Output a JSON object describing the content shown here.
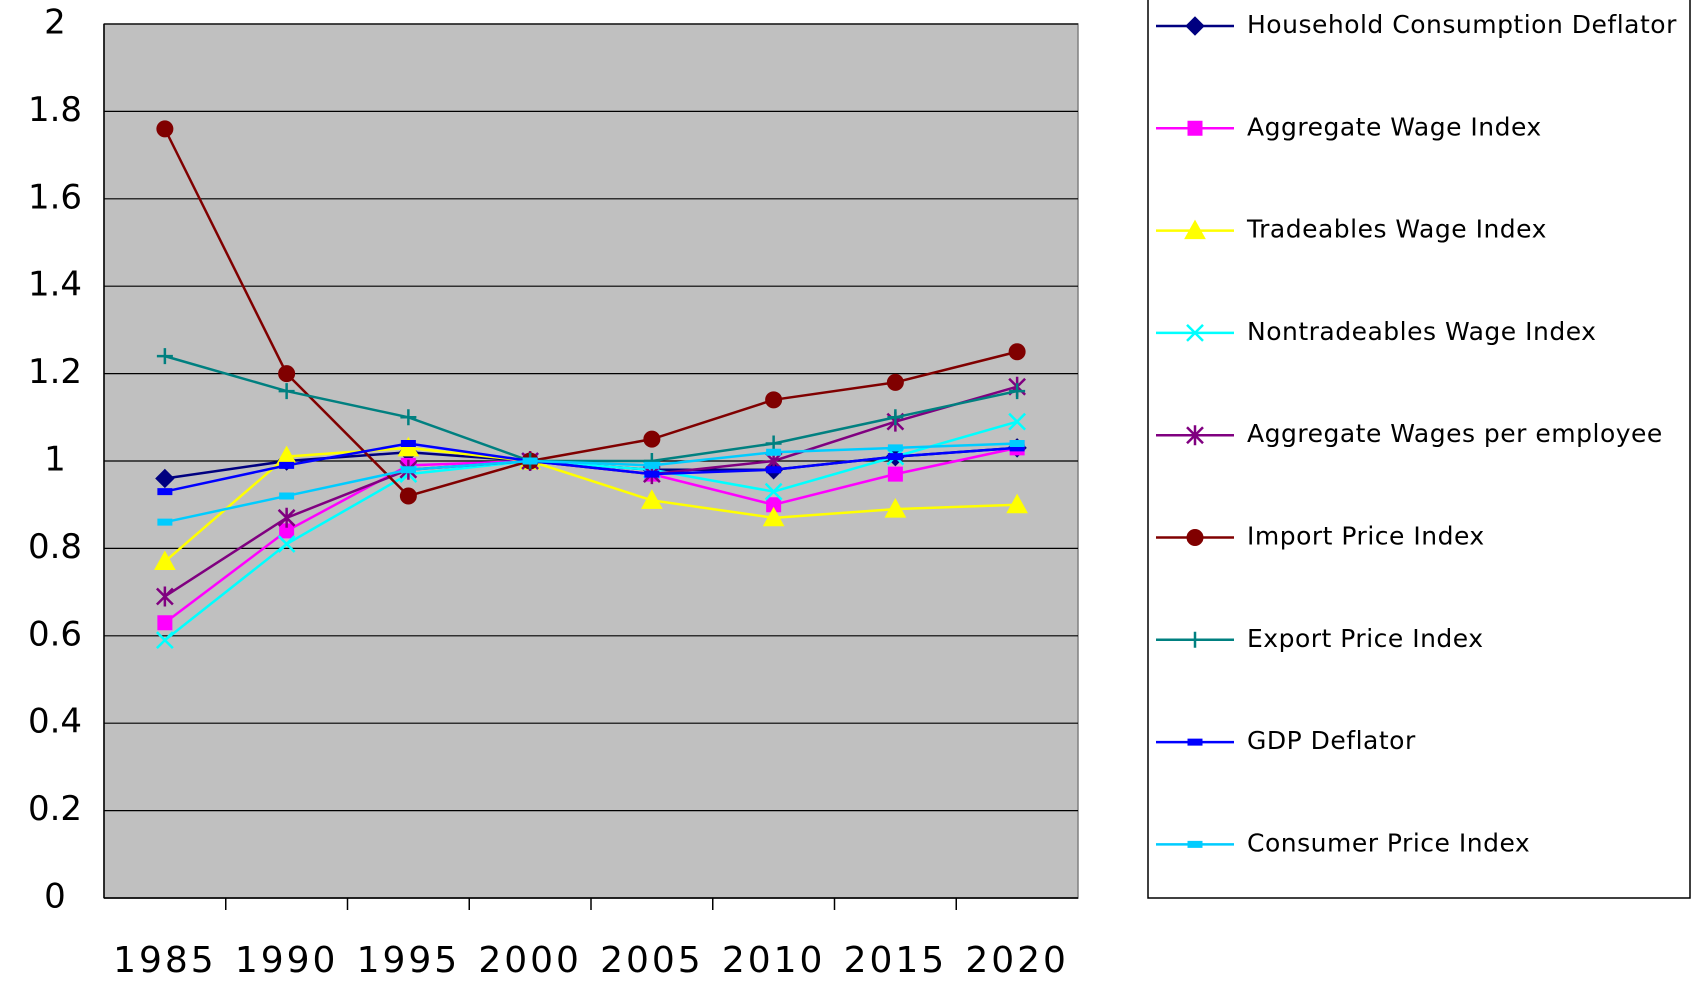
{
  "chart_data": {
    "type": "line",
    "categories": [
      "1985",
      "1990",
      "1995",
      "2000",
      "2005",
      "2010",
      "2015",
      "2020"
    ],
    "ylim": [
      0,
      2
    ],
    "yticks": [
      0,
      0.2,
      0.4,
      0.6,
      0.8,
      1,
      1.2,
      1.4,
      1.6,
      1.8,
      2
    ],
    "grid": true,
    "legend": "right",
    "series": [
      {
        "name": "Household Consumption Deflator",
        "color": "#000080",
        "marker": "diamond",
        "values": [
          0.96,
          1.0,
          1.02,
          1.0,
          0.98,
          0.98,
          1.01,
          1.03
        ]
      },
      {
        "name": "Aggregate Wage Index",
        "color": "#ff00ff",
        "marker": "square",
        "values": [
          0.63,
          0.84,
          0.99,
          1.0,
          0.97,
          0.9,
          0.97,
          1.03
        ]
      },
      {
        "name": "Tradeables Wage Index",
        "color": "#ffff00",
        "marker": "triangle",
        "values": [
          0.77,
          1.01,
          1.03,
          1.0,
          0.91,
          0.87,
          0.89,
          0.9
        ]
      },
      {
        "name": "Nontradeables Wage Index",
        "color": "#00ffff",
        "marker": "x",
        "values": [
          0.59,
          0.81,
          0.97,
          1.0,
          0.98,
          0.93,
          1.01,
          1.09
        ]
      },
      {
        "name": "Aggregate Wages per employee",
        "color": "#800080",
        "marker": "star",
        "values": [
          0.69,
          0.87,
          0.98,
          1.0,
          0.97,
          1.0,
          1.09,
          1.17
        ]
      },
      {
        "name": "Import Price Index",
        "color": "#800000",
        "marker": "circle",
        "values": [
          1.76,
          1.2,
          0.92,
          1.0,
          1.05,
          1.14,
          1.18,
          1.25
        ]
      },
      {
        "name": "Export Price Index",
        "color": "#008080",
        "marker": "plus",
        "values": [
          1.24,
          1.16,
          1.1,
          1.0,
          1.0,
          1.04,
          1.1,
          1.16
        ]
      },
      {
        "name": "GDP Deflator",
        "color": "#0000ff",
        "marker": "dash",
        "values": [
          0.93,
          0.99,
          1.04,
          1.0,
          0.97,
          0.98,
          1.01,
          1.03
        ]
      },
      {
        "name": "Consumer Price Index",
        "color": "#00ccff",
        "marker": "dash",
        "values": [
          0.86,
          0.92,
          0.98,
          1.0,
          0.99,
          1.02,
          1.03,
          1.04
        ]
      }
    ]
  }
}
